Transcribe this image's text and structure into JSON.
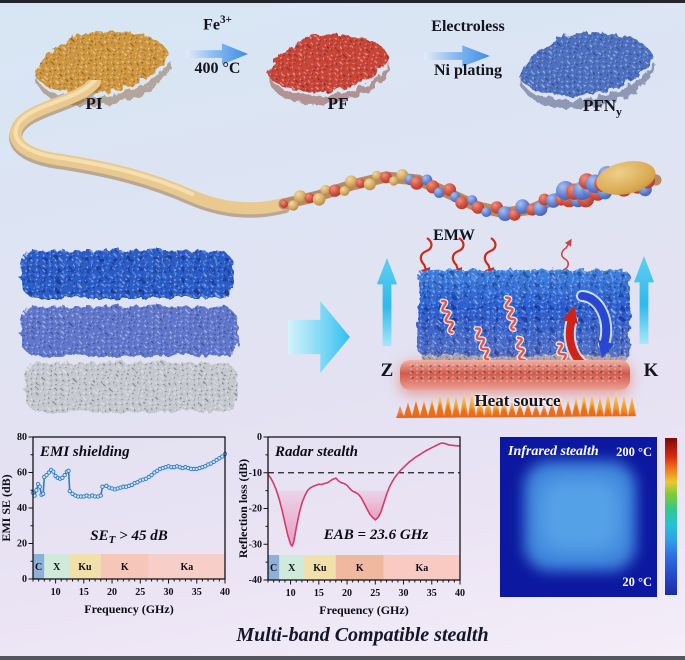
{
  "process_flow": {
    "items": [
      {
        "label": "PI"
      },
      {
        "label": "PF"
      },
      {
        "label_base": "PFN",
        "label_sub": "y"
      }
    ],
    "arrow1": {
      "top_base": "Fe",
      "top_sup": "3+",
      "bottom": "400 °C"
    },
    "arrow2": {
      "top": "Electroless",
      "bottom": "Ni plating"
    }
  },
  "schematic": {
    "emw": "EMW",
    "z": "Z",
    "k": "K",
    "heat": "Heat source"
  },
  "infrared": {
    "title": "Infrared stealth",
    "t_max": "200 °C",
    "t_min": "20 °C"
  },
  "caption": "Multi-band Compatible stealth",
  "colors": {
    "pi_foam": "#cf963f",
    "pf_foam": "#c84539",
    "pfn_foam": "#4d6fc0",
    "emi_line": "#2f7bc8",
    "radar_line": "#d23b6a",
    "thermal_bg": "#0c18a0"
  },
  "chart_data": [
    {
      "id": "emi",
      "type": "line",
      "title": "EMI shielding",
      "xlabel": "Frequency (GHz)",
      "ylabel": "EMI SE (dB)",
      "xlim": [
        6,
        40
      ],
      "ylim": [
        0,
        80
      ],
      "xticks": [
        10,
        15,
        20,
        25,
        30,
        35,
        40
      ],
      "yticks": [
        0,
        20,
        40,
        60,
        80
      ],
      "annotation": {
        "pre": "SE",
        "sub": "T",
        "post": " > 45 dB"
      },
      "line_color": "#2f7bc8",
      "marker": true,
      "bands": [
        {
          "label": "C",
          "from": 6,
          "to": 8,
          "color": "#8cb0d8"
        },
        {
          "label": "X",
          "from": 8,
          "to": 12.4,
          "color": "#cfeadb"
        },
        {
          "label": "Ku",
          "from": 12.4,
          "to": 18,
          "color": "#f2e0aa"
        },
        {
          "label": "K",
          "from": 18,
          "to": 26.5,
          "color": "#f6c6b8"
        },
        {
          "label": "Ka",
          "from": 26.5,
          "to": 40,
          "color": "#f8cfc8"
        }
      ],
      "x": [
        6,
        6.3,
        6.6,
        6.9,
        7.2,
        7.5,
        7.8,
        8,
        8.4,
        8.8,
        9.2,
        9.6,
        10,
        10.4,
        10.8,
        11.2,
        11.6,
        12,
        12.3,
        12.5,
        13,
        13.5,
        14,
        14.5,
        15,
        15.5,
        16,
        16.5,
        17,
        17.5,
        18,
        18.3,
        19,
        19.5,
        20,
        20.5,
        21,
        21.5,
        22,
        22.5,
        23,
        23.5,
        24,
        24.5,
        25,
        25.5,
        26,
        26.5,
        27,
        27.5,
        28,
        28.5,
        29,
        29.5,
        30,
        30.5,
        31,
        31.5,
        32,
        32.5,
        33,
        33.5,
        34,
        34.5,
        35,
        35.5,
        36,
        36.5,
        37,
        37.5,
        38,
        38.5,
        39,
        39.5,
        40
      ],
      "y": [
        48.5,
        47,
        50,
        53.5,
        52,
        47.5,
        48,
        57.5,
        58.5,
        60,
        61.5,
        60.5,
        58,
        57,
        56.5,
        57,
        58.5,
        60.5,
        61,
        49.5,
        48,
        47,
        46.5,
        46.5,
        46.5,
        47,
        46.5,
        47,
        46.5,
        46.5,
        47,
        52,
        52.5,
        51.5,
        51,
        50.5,
        51,
        51.5,
        52,
        52,
        52.5,
        53,
        54,
        54.5,
        55.5,
        56,
        56.5,
        57.5,
        58.5,
        60,
        61,
        62,
        62.5,
        63,
        63.5,
        63,
        63,
        63.5,
        63,
        62.5,
        63,
        62.5,
        62,
        62,
        62,
        62.5,
        63,
        63.5,
        64.5,
        65,
        66,
        67,
        68,
        69,
        70.5
      ]
    },
    {
      "id": "radar",
      "type": "line",
      "title": "Radar stealth",
      "xlabel": "Frequency (GHz)",
      "ylabel": "Reflection loss (dB)",
      "xlim": [
        6,
        40
      ],
      "ylim": [
        -40,
        0
      ],
      "xticks": [
        10,
        15,
        20,
        25,
        30,
        35,
        40
      ],
      "yticks": [
        0,
        -10,
        -20,
        -30,
        -40
      ],
      "dashed_y": -10,
      "fill_below": -15,
      "fill_color": "#ef6e9e",
      "annotation": {
        "pre": "EAB = 23.6 GHz",
        "sub": "",
        "post": ""
      },
      "line_color": "#d23b6a",
      "marker": false,
      "bands": [
        {
          "label": "C",
          "from": 6,
          "to": 8,
          "color": "#8cb0d8"
        },
        {
          "label": "X",
          "from": 8,
          "to": 12.4,
          "color": "#cfeadb"
        },
        {
          "label": "Ku",
          "from": 12.4,
          "to": 18,
          "color": "#f2e0aa"
        },
        {
          "label": "K",
          "from": 18,
          "to": 26.5,
          "color": "#f0b89e"
        },
        {
          "label": "Ka",
          "from": 26.5,
          "to": 40,
          "color": "#f8cac2"
        }
      ],
      "x": [
        6,
        6.5,
        7,
        7.5,
        8,
        8.5,
        9,
        9.5,
        10,
        10.3,
        10.6,
        11,
        11.5,
        12,
        12.5,
        13,
        13.5,
        14,
        14.5,
        15,
        15.5,
        16,
        16.5,
        17,
        17.5,
        18,
        18.5,
        19,
        19.5,
        20,
        20.5,
        21,
        21.5,
        22,
        22.5,
        23,
        23.5,
        24,
        24.5,
        25,
        25.5,
        26,
        26.5,
        27,
        27.5,
        28,
        28.5,
        29,
        29.5,
        30,
        31,
        32,
        33,
        34,
        35,
        36,
        36.5,
        37,
        37.5,
        38,
        39,
        40
      ],
      "y": [
        -10.5,
        -11.5,
        -13,
        -15,
        -17.5,
        -20.5,
        -24,
        -27.5,
        -30,
        -30.5,
        -29,
        -25.5,
        -21.5,
        -18.5,
        -16.5,
        -15,
        -14.2,
        -13.8,
        -13.5,
        -13.2,
        -13.3,
        -13,
        -12.8,
        -12.3,
        -11.8,
        -11.5,
        -12.3,
        -12.8,
        -13,
        -13.5,
        -14.5,
        -15.2,
        -15.5,
        -16,
        -17,
        -18.5,
        -20,
        -21.5,
        -22.5,
        -23.2,
        -22.5,
        -21,
        -18.5,
        -16,
        -14,
        -12.5,
        -11.2,
        -10.2,
        -9.3,
        -8.5,
        -7,
        -5.8,
        -4.8,
        -3.8,
        -3,
        -2.2,
        -1.8,
        -1.7,
        -1.9,
        -2.2,
        -2.4,
        -2.5
      ]
    }
  ]
}
